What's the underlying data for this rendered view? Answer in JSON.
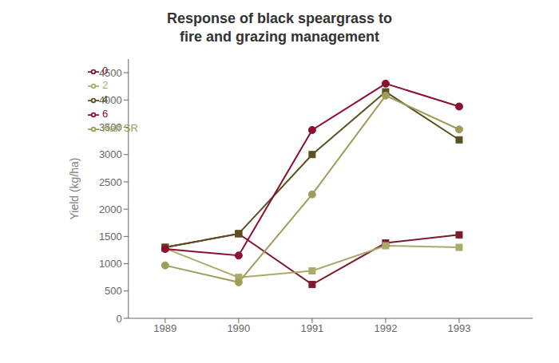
{
  "chart_data": {
    "type": "line",
    "title": "Response of black speargrass to\nfire and grazing management",
    "y_label": "Yield (kg/ha)",
    "x": [
      1989,
      1990,
      1991,
      1992,
      1993
    ],
    "xlim": [
      1988.5,
      1994.0
    ],
    "xticks": [
      1989,
      1990,
      1991,
      1992,
      1993
    ],
    "ylim": [
      0,
      4750
    ],
    "yticks": [
      0,
      500,
      1000,
      1500,
      2000,
      2500,
      3000,
      3500,
      4000,
      4500
    ],
    "grid": false,
    "legend": "upper left",
    "series": [
      {
        "name": "0",
        "color": "#7B1C2C",
        "marker": "square",
        "values": [
          1300,
          1550,
          620,
          1380,
          1530
        ]
      },
      {
        "name": "2",
        "color": "#AAAA6A",
        "marker": "square",
        "values": [
          1280,
          750,
          870,
          1330,
          1300
        ]
      },
      {
        "name": "4",
        "color": "#5A5020",
        "marker": "square",
        "values": [
          1300,
          1550,
          3000,
          4150,
          3270
        ]
      },
      {
        "name": "6",
        "color": "#8B1030",
        "marker": "circle",
        "values": [
          1270,
          1150,
          3450,
          4300,
          3880
        ]
      },
      {
        "name": "Half SR",
        "color": "#9E9E5A",
        "marker": "circle",
        "values": [
          970,
          660,
          2270,
          4080,
          3460
        ]
      }
    ]
  }
}
